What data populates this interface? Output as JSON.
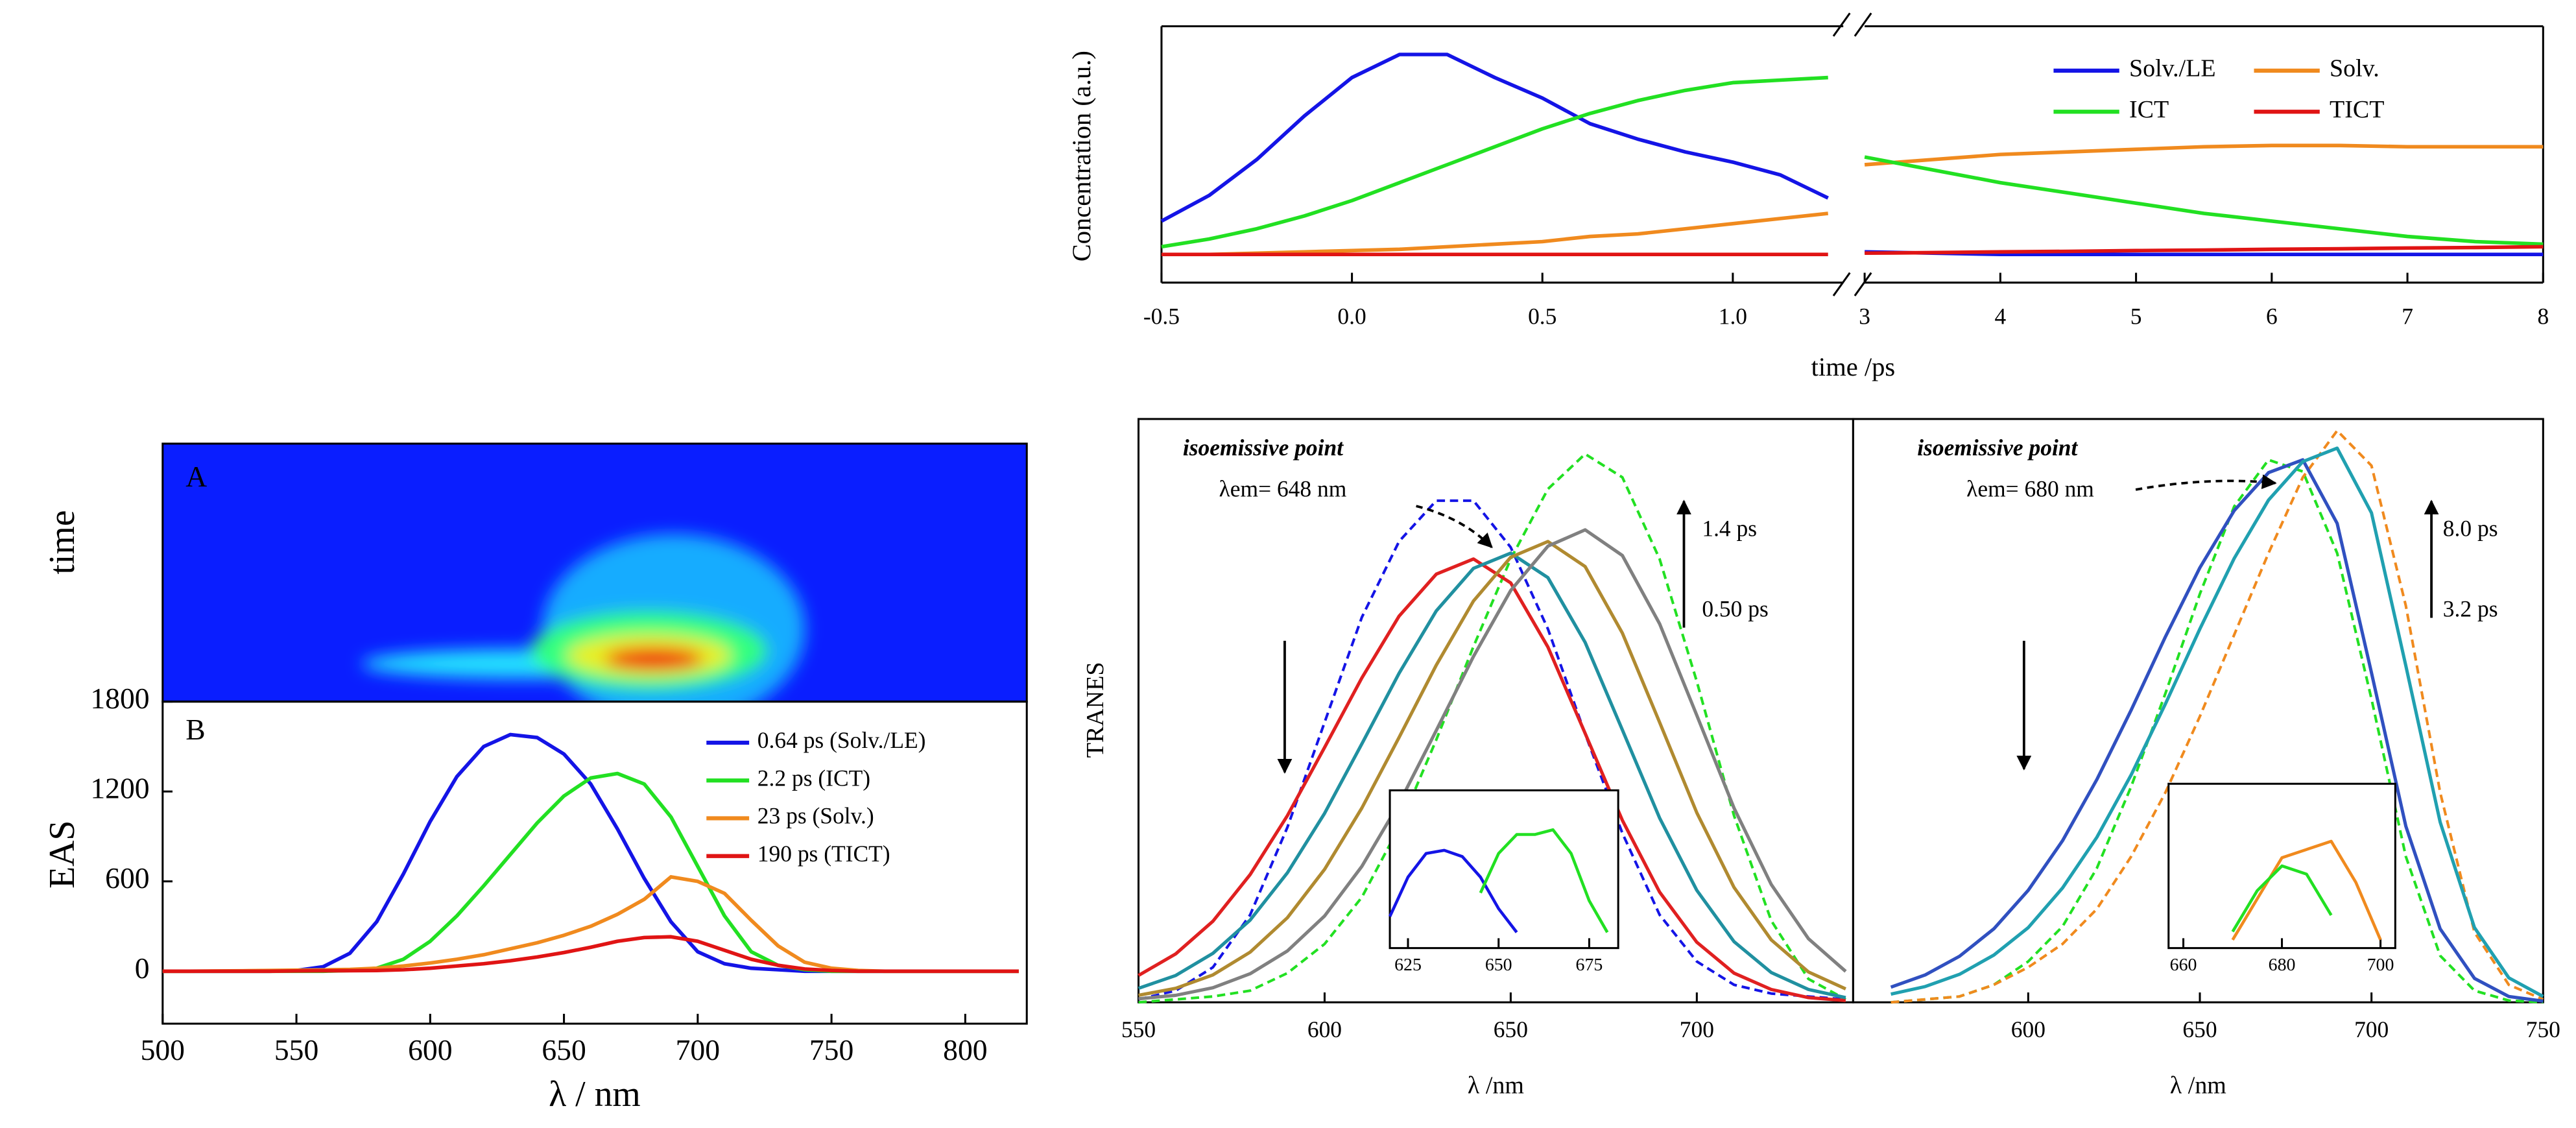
{
  "chart_data": [
    {
      "type": "heatmap",
      "panel_label": "A",
      "ylabel": "time"
    },
    {
      "type": "line",
      "panel_label": "B",
      "ylabel": "EAS",
      "xlabel": "λ / nm",
      "xlim": [
        500,
        823
      ],
      "xticks": [
        500,
        550,
        600,
        650,
        700,
        750,
        800
      ],
      "ylim": [
        -350,
        1800
      ],
      "yticks": [
        0,
        600,
        1200,
        1800
      ],
      "x": [
        500,
        510,
        520,
        530,
        540,
        550,
        560,
        570,
        580,
        590,
        600,
        610,
        620,
        630,
        640,
        650,
        660,
        670,
        680,
        690,
        700,
        710,
        720,
        730,
        740,
        750,
        760,
        770,
        780,
        790,
        800,
        810,
        820
      ],
      "series": [
        {
          "name": "0.64 ps (Solv./LE)",
          "color": "#1414e6",
          "values": [
            0,
            0,
            0,
            0,
            0,
            5,
            30,
            120,
            330,
            650,
            1000,
            1300,
            1500,
            1580,
            1560,
            1450,
            1250,
            950,
            620,
            330,
            130,
            50,
            20,
            10,
            0,
            0,
            0,
            0,
            0,
            0,
            0,
            0,
            0
          ]
        },
        {
          "name": "2.2 ps (ICT)",
          "color": "#22e022",
          "values": [
            0,
            0,
            0,
            0,
            0,
            0,
            0,
            5,
            20,
            80,
            200,
            370,
            570,
            780,
            990,
            1170,
            1290,
            1320,
            1250,
            1030,
            700,
            370,
            130,
            40,
            10,
            0,
            0,
            0,
            0,
            0,
            0,
            0,
            0
          ]
        },
        {
          "name": "23 ps (Solv.)",
          "color": "#f08a1e",
          "values": [
            0,
            0,
            2,
            3,
            5,
            7,
            9,
            12,
            20,
            35,
            55,
            80,
            110,
            150,
            190,
            240,
            300,
            380,
            480,
            630,
            600,
            520,
            340,
            170,
            60,
            20,
            5,
            0,
            0,
            0,
            0,
            0,
            0
          ]
        },
        {
          "name": "190 ps (TICT)",
          "color": "#e01414",
          "values": [
            0,
            0,
            0,
            0,
            0,
            2,
            3,
            4,
            5,
            10,
            20,
            35,
            50,
            70,
            95,
            125,
            160,
            200,
            225,
            230,
            200,
            140,
            80,
            40,
            15,
            5,
            0,
            0,
            0,
            0,
            0,
            0,
            0
          ]
        }
      ]
    },
    {
      "type": "brokenline",
      "ylabel": "Concentration (a.u.)",
      "xlabel": "time /ps",
      "ylim": [
        0,
        1
      ],
      "segments": [
        {
          "xlim": [
            -0.5,
            1.29
          ],
          "xticks": [
            -0.5,
            {
              "value": 0,
              "label": "0.0"
            },
            0.5,
            {
              "value": 1,
              "label": "1.0"
            }
          ],
          "x": [
            -0.5,
            -0.375,
            -0.25,
            -0.125,
            0,
            0.125,
            0.25,
            0.375,
            0.5,
            0.625,
            0.75,
            0.875,
            1,
            1.125,
            1.25
          ]
        },
        {
          "xlim": [
            3,
            8
          ],
          "xticks": [
            3,
            4,
            5,
            6,
            7,
            8
          ],
          "x": [
            3,
            3.5,
            4,
            4.5,
            5,
            5.5,
            6,
            6.5,
            7,
            7.5,
            8
          ]
        }
      ],
      "series": [
        {
          "name": "Solv./LE",
          "color": "#1414e6",
          "segments": [
            [
              0.24,
              0.34,
              0.48,
              0.65,
              0.8,
              0.89,
              0.89,
              0.8,
              0.72,
              0.62,
              0.56,
              0.51,
              0.47,
              0.42,
              0.33
            ],
            [
              0.12,
              0.115,
              0.11,
              0.11,
              0.11,
              0.11,
              0.11,
              0.11,
              0.11,
              0.11,
              0.11
            ]
          ]
        },
        {
          "name": "Solv.",
          "color": "#f08a1e",
          "segments": [
            [
              0.11,
              0.11,
              0.115,
              0.12,
              0.125,
              0.13,
              0.14,
              0.15,
              0.16,
              0.18,
              0.19,
              0.21,
              0.23,
              0.25,
              0.27
            ],
            [
              0.46,
              0.48,
              0.5,
              0.51,
              0.52,
              0.53,
              0.535,
              0.535,
              0.53,
              0.53,
              0.53
            ]
          ]
        },
        {
          "name": "ICT",
          "color": "#22e022",
          "segments": [
            [
              0.14,
              0.17,
              0.21,
              0.26,
              0.32,
              0.39,
              0.46,
              0.53,
              0.6,
              0.66,
              0.71,
              0.75,
              0.78,
              0.79,
              0.8
            ],
            [
              0.49,
              0.44,
              0.39,
              0.35,
              0.31,
              0.27,
              0.24,
              0.21,
              0.18,
              0.16,
              0.15
            ]
          ]
        },
        {
          "name": "TICT",
          "color": "#e01414",
          "segments": [
            [
              0.11,
              0.11,
              0.11,
              0.11,
              0.11,
              0.11,
              0.11,
              0.11,
              0.11,
              0.11,
              0.11,
              0.11,
              0.11,
              0.11,
              0.11
            ],
            [
              0.115,
              0.117,
              0.12,
              0.122,
              0.125,
              0.127,
              0.13,
              0.132,
              0.135,
              0.137,
              0.14
            ]
          ]
        }
      ]
    },
    {
      "type": "spectra",
      "ylabel": "TRANES",
      "ylim": [
        0,
        1
      ],
      "panels": [
        {
          "xlabel": "λ /nm",
          "xlim": [
            550,
            742
          ],
          "xticks": [
            550,
            600,
            650,
            700
          ],
          "annotation": "isoemissive point",
          "point_label": "λem= 648 nm",
          "arrow_labels": [
            "1.4 ps",
            "0.50 ps"
          ],
          "x": [
            550,
            560,
            570,
            580,
            590,
            600,
            610,
            620,
            630,
            640,
            650,
            660,
            670,
            680,
            690,
            700,
            710,
            720,
            730,
            740
          ],
          "series": [
            {
              "color": "#1414e6",
              "style": "dashed",
              "values": [
                0.005,
                0.02,
                0.06,
                0.15,
                0.3,
                0.48,
                0.66,
                0.79,
                0.86,
                0.86,
                0.78,
                0.64,
                0.46,
                0.29,
                0.15,
                0.07,
                0.03,
                0.015,
                0.01,
                0.005
              ]
            },
            {
              "color": "#22e022",
              "style": "dashed",
              "values": [
                0,
                0.005,
                0.01,
                0.02,
                0.05,
                0.1,
                0.18,
                0.3,
                0.45,
                0.61,
                0.76,
                0.88,
                0.94,
                0.9,
                0.76,
                0.55,
                0.32,
                0.14,
                0.04,
                0.005
              ]
            },
            {
              "color": "#e02020",
              "style": "solid",
              "values": [
                0.046,
                0.083,
                0.139,
                0.219,
                0.32,
                0.437,
                0.556,
                0.662,
                0.734,
                0.76,
                0.719,
                0.609,
                0.461,
                0.312,
                0.189,
                0.103,
                0.05,
                0.022,
                0.008,
                0.003
              ]
            },
            {
              "color": "#2090a0",
              "style": "solid",
              "values": [
                0.024,
                0.046,
                0.084,
                0.141,
                0.222,
                0.324,
                0.443,
                0.564,
                0.671,
                0.744,
                0.77,
                0.728,
                0.617,
                0.467,
                0.316,
                0.192,
                0.104,
                0.051,
                0.022,
                0.008
              ]
            },
            {
              "color": "#b08a30",
              "style": "solid",
              "values": [
                0.012,
                0.024,
                0.047,
                0.086,
                0.145,
                0.228,
                0.333,
                0.454,
                0.578,
                0.688,
                0.763,
                0.79,
                0.747,
                0.633,
                0.48,
                0.325,
                0.197,
                0.107,
                0.052,
                0.023
              ]
            },
            {
              "color": "#808080",
              "style": "solid",
              "values": [
                0.006,
                0.012,
                0.025,
                0.049,
                0.088,
                0.148,
                0.233,
                0.341,
                0.466,
                0.593,
                0.706,
                0.782,
                0.81,
                0.766,
                0.649,
                0.492,
                0.333,
                0.202,
                0.109,
                0.053
              ]
            }
          ],
          "inset": {
            "xlim": [
              620,
              683
            ],
            "xticks": [
              625,
              650,
              675
            ],
            "ylim": [
              0,
              1
            ],
            "series": [
              {
                "color": "#1414e6",
                "x": [
                  620,
                  625,
                  630,
                  635,
                  640,
                  645,
                  650,
                  655
                ],
                "values": [
                  0.2,
                  0.45,
                  0.6,
                  0.62,
                  0.58,
                  0.45,
                  0.25,
                  0.1
                ]
              },
              {
                "color": "#22e022",
                "x": [
                  645,
                  650,
                  655,
                  660,
                  665,
                  670,
                  675,
                  680
                ],
                "values": [
                  0.35,
                  0.6,
                  0.72,
                  0.72,
                  0.75,
                  0.6,
                  0.3,
                  0.1
                ]
              }
            ]
          }
        },
        {
          "xlabel": "λ /nm",
          "xlim": [
            549,
            750
          ],
          "xticks": [
            600,
            650,
            700,
            750
          ],
          "annotation": "isoemissive point",
          "point_label": "λem= 680 nm",
          "arrow_labels": [
            "8.0 ps",
            "3.2 ps"
          ],
          "x": [
            560,
            570,
            580,
            590,
            600,
            610,
            620,
            630,
            640,
            650,
            660,
            670,
            680,
            690,
            700,
            710,
            720,
            730,
            740,
            750
          ],
          "series": [
            {
              "color": "#22e022",
              "style": "dashed",
              "values": [
                0,
                0.005,
                0.01,
                0.03,
                0.07,
                0.13,
                0.23,
                0.37,
                0.53,
                0.7,
                0.85,
                0.93,
                0.91,
                0.77,
                0.52,
                0.25,
                0.08,
                0.02,
                0.003,
                0
              ]
            },
            {
              "color": "#f08a1e",
              "style": "dashed",
              "values": [
                0,
                0.005,
                0.01,
                0.03,
                0.06,
                0.1,
                0.16,
                0.25,
                0.36,
                0.49,
                0.63,
                0.77,
                0.9,
                0.98,
                0.92,
                0.68,
                0.36,
                0.12,
                0.03,
                0.005
              ]
            },
            {
              "color": "#3050c0",
              "style": "solid",
              "values": [
                0.026,
                0.047,
                0.079,
                0.126,
                0.192,
                0.277,
                0.382,
                0.501,
                0.627,
                0.745,
                0.843,
                0.908,
                0.93,
                0.821,
                0.565,
                0.302,
                0.126,
                0.041,
                0.01,
                0.002
              ]
            },
            {
              "color": "#20a0b0",
              "style": "solid",
              "values": [
                0.014,
                0.027,
                0.048,
                0.081,
                0.128,
                0.196,
                0.283,
                0.39,
                0.512,
                0.64,
                0.761,
                0.861,
                0.927,
                0.95,
                0.839,
                0.577,
                0.309,
                0.128,
                0.042,
                0.01
              ]
            }
          ],
          "inset": {
            "xlim": [
              657,
              703
            ],
            "xticks": [
              660,
              680,
              700
            ],
            "ylim": [
              0,
              1
            ],
            "series": [
              {
                "color": "#f08a1e",
                "x": [
                  670,
                  675,
                  680,
                  685,
                  690,
                  695,
                  700
                ],
                "values": [
                  0.05,
                  0.3,
                  0.55,
                  0.6,
                  0.65,
                  0.4,
                  0.05
                ]
              },
              {
                "color": "#22e022",
                "x": [
                  670,
                  675,
                  680,
                  685,
                  690
                ],
                "values": [
                  0.1,
                  0.35,
                  0.5,
                  0.45,
                  0.2
                ]
              }
            ]
          }
        }
      ]
    }
  ]
}
